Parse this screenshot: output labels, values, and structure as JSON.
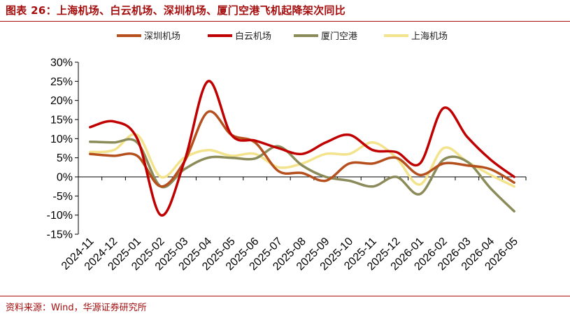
{
  "title": "图表 26：上海机场、白云机场、深圳机场、厦门空港飞机起降架次同比",
  "source": "资料来源：Wind，华源证券研究所",
  "chart_data": {
    "type": "line",
    "title": "图表 26：上海机场、白云机场、深圳机场、厦门空港飞机起降架次同比",
    "xlabel": "",
    "ylabel": "",
    "x": [
      "2024-11",
      "2024-12",
      "2025-01",
      "2025-02",
      "2025-03",
      "2025-04",
      "2025-05",
      "2025-06",
      "2025-07",
      "2025-08",
      "2025-09",
      "2025-10",
      "2025-11",
      "2025-12",
      "2026-01",
      "2026-02",
      "2026-03",
      "2026-04",
      "2026-05"
    ],
    "ylim": [
      -15,
      30
    ],
    "yticks": [
      30,
      25,
      20,
      15,
      10,
      5,
      0,
      -5,
      -10,
      -15
    ],
    "ytick_labels": [
      "30%",
      "25%",
      "20%",
      "15%",
      "10%",
      "5%",
      "0%",
      "-5%",
      "-10%",
      "-15%"
    ],
    "grid": false,
    "legend_position": "top",
    "series": [
      {
        "name": "深圳机场",
        "color": "#b5501e",
        "values": [
          6.0,
          5.5,
          5.5,
          -2.5,
          4.0,
          17.0,
          11.0,
          9.0,
          1.5,
          1.0,
          -1.0,
          3.5,
          3.5,
          5.0,
          0.5,
          3.5,
          3.0,
          2.0,
          -1.5
        ]
      },
      {
        "name": "白云机场",
        "color": "#c00000",
        "values": [
          13.0,
          14.5,
          10.0,
          -10.0,
          4.0,
          25.0,
          11.0,
          9.5,
          7.5,
          6.0,
          9.0,
          11.0,
          7.0,
          6.5,
          3.5,
          18.0,
          10.5,
          4.5,
          0.0
        ]
      },
      {
        "name": "厦门空港",
        "color": "#8b8b5a",
        "values": [
          9.2,
          9.0,
          9.0,
          -2.5,
          2.0,
          5.0,
          5.0,
          4.8,
          8.0,
          3.0,
          0.0,
          -1.0,
          -2.5,
          0.0,
          -4.5,
          4.5,
          4.0,
          -3.0,
          -9.0
        ]
      },
      {
        "name": "上海机场",
        "color": "#f2e38c",
        "values": [
          6.5,
          7.0,
          11.0,
          0.0,
          5.0,
          7.0,
          5.5,
          6.0,
          2.5,
          3.5,
          6.0,
          6.0,
          9.0,
          5.0,
          -2.0,
          7.5,
          4.0,
          0.5,
          -2.5
        ]
      }
    ]
  }
}
